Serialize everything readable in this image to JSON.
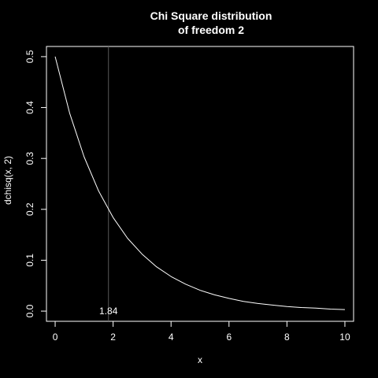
{
  "colors": {
    "background": "#000000",
    "foreground": "#ffffff",
    "marker_line": "#5a5a5a"
  },
  "chart_data": {
    "type": "line",
    "title_lines": [
      "Chi Square distribution",
      "of freedom 2"
    ],
    "xlabel": "x",
    "ylabel": "dchisq(x, 2)",
    "xlim": [
      0,
      10
    ],
    "ylim": [
      0,
      0.5
    ],
    "x_ticks": [
      0,
      2,
      4,
      6,
      8,
      10
    ],
    "x_tick_labels": [
      "0",
      "2",
      "4",
      "6",
      "8",
      "10"
    ],
    "y_ticks": [
      0,
      0.1,
      0.2,
      0.3,
      0.4,
      0.5
    ],
    "y_tick_labels": [
      "0.0",
      "0.1",
      "0.2",
      "0.3",
      "0.4",
      "0.5"
    ],
    "grid": false,
    "series": [
      {
        "x": [
          0,
          0.5,
          1,
          1.5,
          2,
          2.5,
          3,
          3.5,
          4,
          4.5,
          5,
          5.5,
          6,
          6.5,
          7,
          7.5,
          8,
          8.5,
          9,
          9.5,
          10
        ],
        "y": [
          0.5,
          0.389,
          0.303,
          0.236,
          0.184,
          0.143,
          0.112,
          0.087,
          0.068,
          0.053,
          0.041,
          0.032,
          0.025,
          0.019,
          0.015,
          0.012,
          0.009,
          0.007,
          0.006,
          0.004,
          0.003
        ]
      }
    ],
    "vertical_marker": {
      "x": 1.84,
      "label": "1.84"
    }
  }
}
